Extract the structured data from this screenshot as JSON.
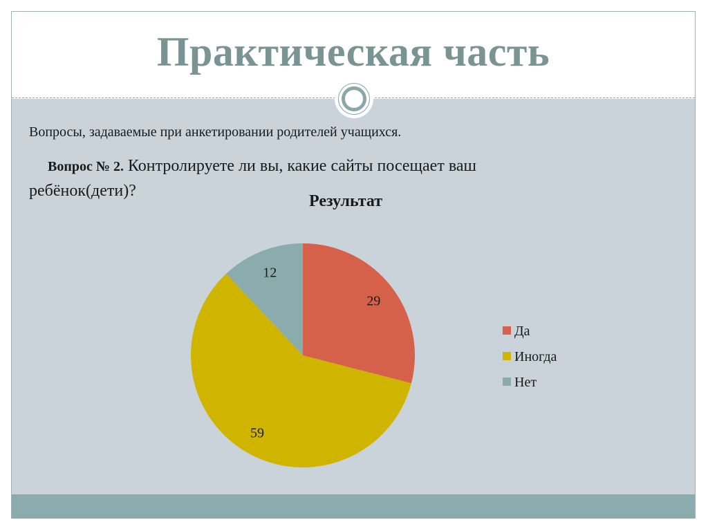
{
  "slide": {
    "title": "Практическая часть",
    "subtitle": "Вопросы, задаваемые при анкетировании родителей учащихся.",
    "question_label": "Вопрос № 2.",
    "question_text": " Контролируете ли вы, какие сайты посещает ваш ребёнок(дети)?"
  },
  "colors": {
    "title": "#7a9393",
    "content_bg": "#c9d3d9",
    "footer_band": "#8aacac"
  },
  "chart_data": {
    "type": "pie",
    "title": "Результат",
    "categories": [
      "Да",
      "Иногда",
      "Нет"
    ],
    "values": [
      29,
      59,
      12
    ],
    "colors": [
      "#d5614a",
      "#cfb500",
      "#8aacac"
    ],
    "data_labels_shown": true,
    "legend_position": "right",
    "start_angle": "12 o'clock",
    "direction": "clockwise"
  }
}
